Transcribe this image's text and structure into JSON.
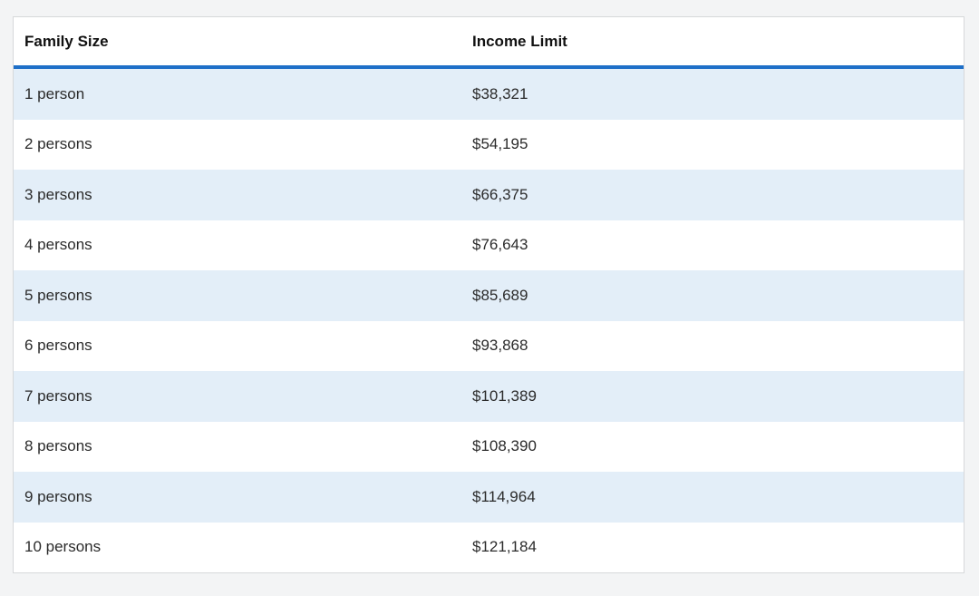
{
  "table": {
    "headers": [
      "Family Size",
      "Income Limit"
    ],
    "rows": [
      {
        "size": "1 person",
        "limit": "$38,321"
      },
      {
        "size": "2 persons",
        "limit": "$54,195"
      },
      {
        "size": "3 persons",
        "limit": "$66,375"
      },
      {
        "size": "4 persons",
        "limit": "$76,643"
      },
      {
        "size": "5 persons",
        "limit": "$85,689"
      },
      {
        "size": "6 persons",
        "limit": "$93,868"
      },
      {
        "size": "7 persons",
        "limit": "$101,389"
      },
      {
        "size": "8 persons",
        "limit": "$108,390"
      },
      {
        "size": "9 persons",
        "limit": "$114,964"
      },
      {
        "size": "10 persons",
        "limit": "$121,184"
      }
    ]
  },
  "colors": {
    "header_rule": "#1e6fc8",
    "stripe": "#e3eef8",
    "page_background": "#f3f4f5"
  }
}
